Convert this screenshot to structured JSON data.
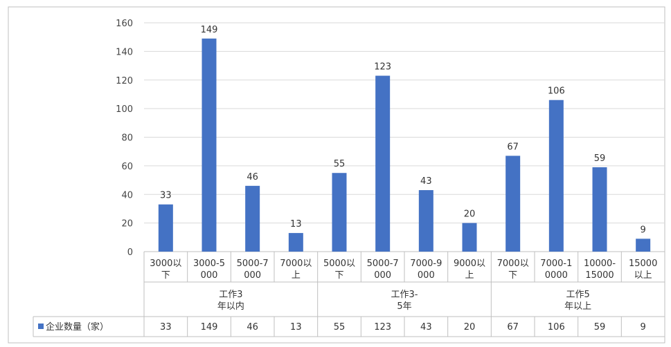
{
  "chart_data": {
    "type": "bar",
    "ylim": [
      0,
      160
    ],
    "yticks": [
      0,
      20,
      40,
      60,
      80,
      100,
      120,
      140,
      160
    ],
    "grid": true,
    "legend": "table-left",
    "categories": [
      [
        "3000以",
        "下"
      ],
      [
        "3000-5",
        "000"
      ],
      [
        "5000-7",
        "000"
      ],
      [
        "7000以",
        "上"
      ],
      [
        "5000以",
        "下"
      ],
      [
        "5000-7",
        "000"
      ],
      [
        "7000-9",
        "000"
      ],
      [
        "9000以",
        "上"
      ],
      [
        "7000以",
        "下"
      ],
      [
        "7000-1",
        "0000"
      ],
      [
        "10000-",
        "15000"
      ],
      [
        "15000",
        "以上"
      ]
    ],
    "groups": [
      {
        "label": [
          "工作3",
          "年以内"
        ],
        "count": 4
      },
      {
        "label": [
          "工作3-",
          "5年"
        ],
        "count": 4
      },
      {
        "label": [
          "工作5",
          "年以上"
        ],
        "count": 4
      }
    ],
    "series": [
      {
        "name": "企业数量（家）",
        "color": "#4472c4",
        "values": [
          33,
          149,
          46,
          13,
          55,
          123,
          43,
          20,
          67,
          106,
          59,
          9
        ]
      }
    ]
  }
}
